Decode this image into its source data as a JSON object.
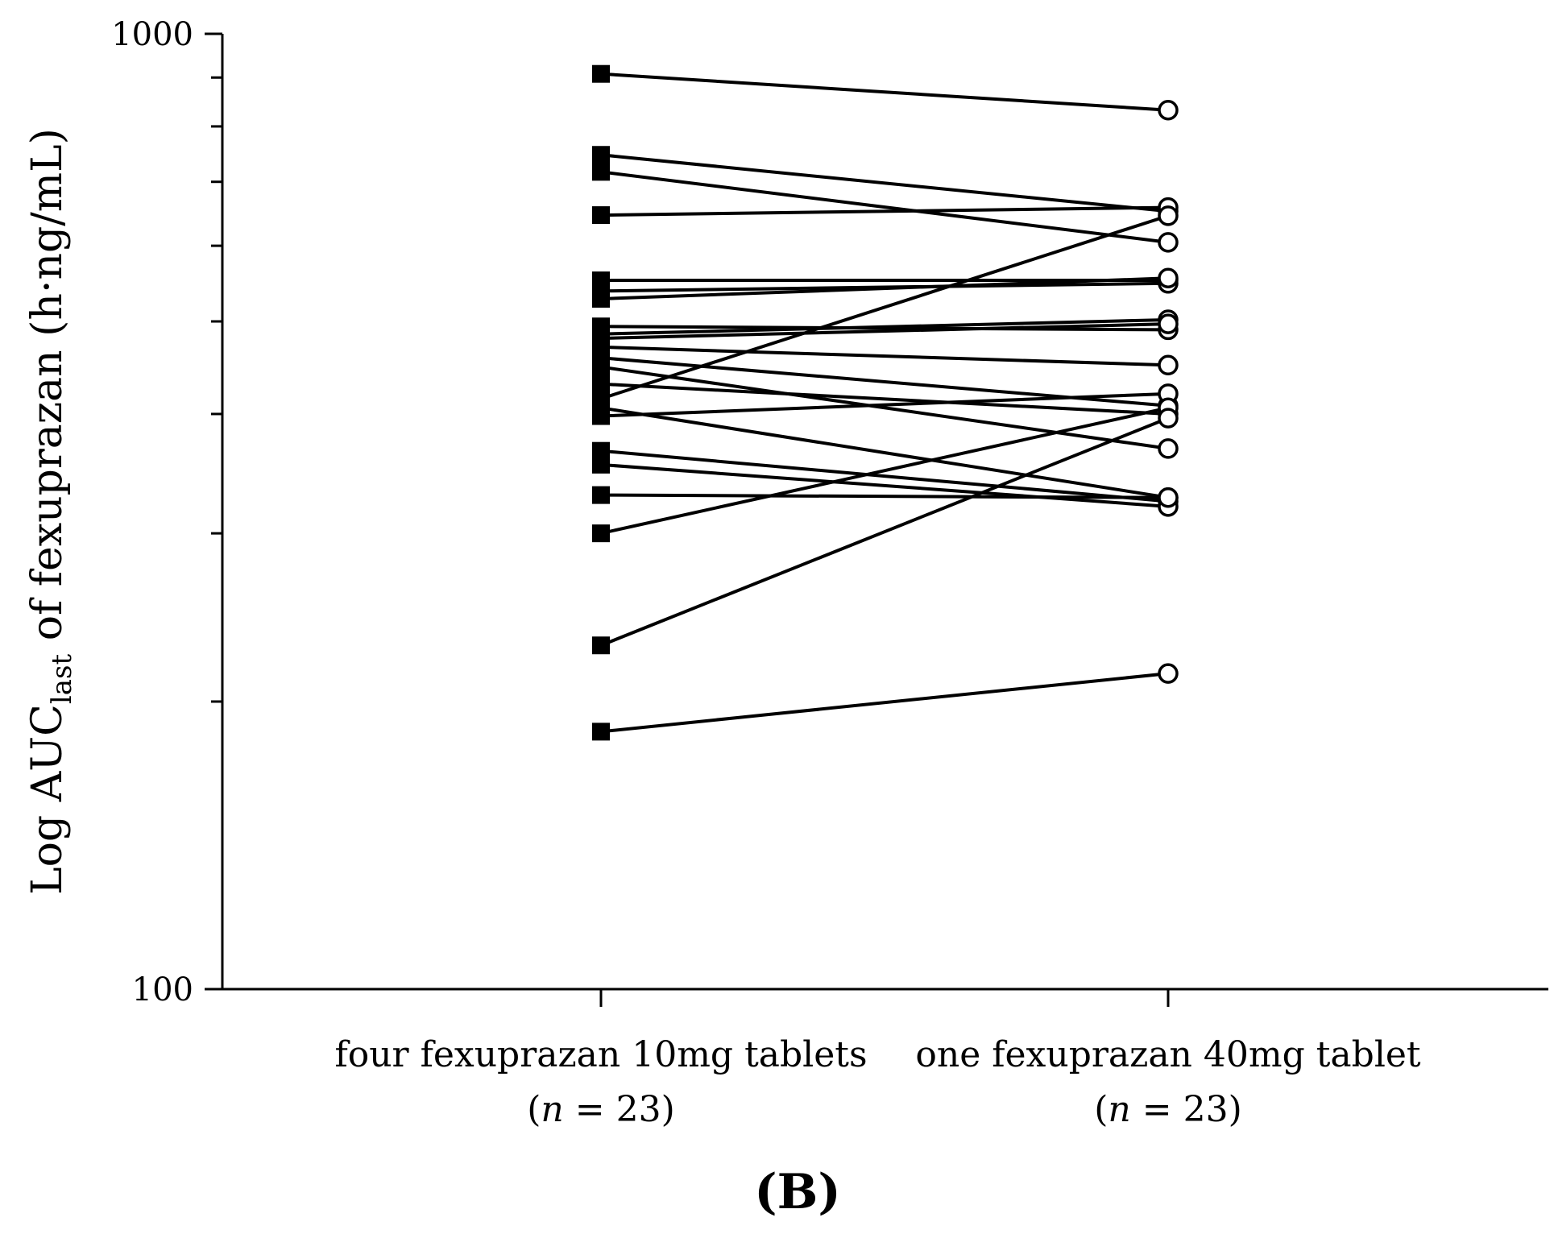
{
  "chart_data": {
    "type": "line",
    "panel_label": "B",
    "ylabel": {
      "main": "Log AUC",
      "subscript": "last",
      "suffix": " of fexuprazan (h·ng/mL)"
    },
    "yscale": "log",
    "ylim": [
      100,
      1000
    ],
    "yticks": [
      "1000",
      "100"
    ],
    "categories": [
      {
        "label": "four fexuprazan 10mg tablets",
        "n_prefix": "(",
        "n_italic": "n",
        "n_suffix": " = 23)"
      },
      {
        "label": "one fexuprazan 40mg tablet",
        "n_prefix": "(",
        "n_italic": "n",
        "n_suffix": " = 23)"
      }
    ],
    "marker_styles": [
      "filled-square",
      "open-circle"
    ],
    "subjects": [
      {
        "values": [
          908,
          832
        ]
      },
      {
        "values": [
          747,
          652
        ]
      },
      {
        "values": [
          717,
          605
        ]
      },
      {
        "values": [
          646,
          658
        ]
      },
      {
        "values": [
          552,
          552
        ]
      },
      {
        "values": [
          538,
          548
        ]
      },
      {
        "values": [
          528,
          555
        ]
      },
      {
        "values": [
          494,
          490
        ]
      },
      {
        "values": [
          485,
          502
        ]
      },
      {
        "values": [
          480,
          497
        ]
      },
      {
        "values": [
          470,
          450
        ]
      },
      {
        "values": [
          458,
          408
        ]
      },
      {
        "values": [
          448,
          368
        ]
      },
      {
        "values": [
          430,
          400
        ]
      },
      {
        "values": [
          415,
          645
        ]
      },
      {
        "values": [
          406,
          327
        ]
      },
      {
        "values": [
          398,
          420
        ]
      },
      {
        "values": [
          366,
          324
        ]
      },
      {
        "values": [
          354,
          320
        ]
      },
      {
        "values": [
          329,
          327
        ]
      },
      {
        "values": [
          300,
          406
        ]
      },
      {
        "values": [
          229,
          396
        ]
      },
      {
        "values": [
          186,
          214
        ]
      }
    ]
  }
}
